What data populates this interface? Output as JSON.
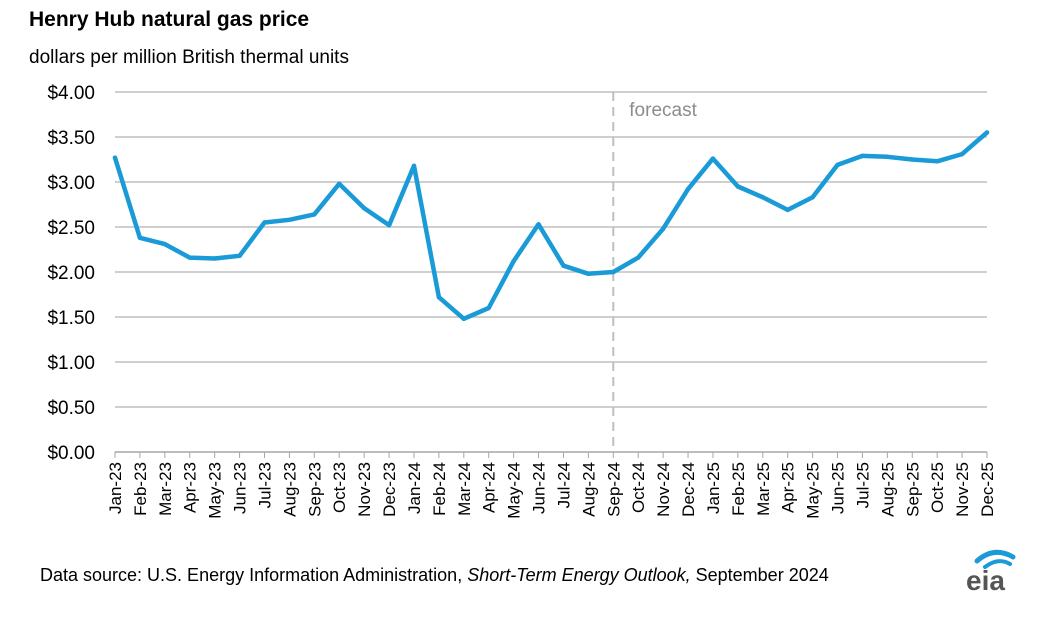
{
  "header": {
    "title": "Henry Hub natural gas price",
    "subtitle": "dollars per million  British thermal units"
  },
  "footer": {
    "source_prefix": "Data source: U.S. Energy Information Administration, ",
    "source_report": "Short-Term Energy Outlook,",
    "source_date": " September 2024"
  },
  "logo": {
    "text": "eia"
  },
  "colors": {
    "line": "#1a9ad6",
    "grid": "#bfbfbf",
    "forecast_line": "#bfbfbf",
    "forecast_text": "#8c8c8c"
  },
  "chart_data": {
    "type": "line",
    "title": "Henry Hub natural gas price",
    "ylabel": "dollars per million  British thermal units",
    "ylim": [
      0,
      4
    ],
    "yticks": [
      "$0.00",
      "$0.50",
      "$1.00",
      "$1.50",
      "$2.00",
      "$2.50",
      "$3.00",
      "$3.50",
      "$4.00"
    ],
    "grid": true,
    "categories": [
      "Jan-23",
      "Feb-23",
      "Mar-23",
      "Apr-23",
      "May-23",
      "Jun-23",
      "Jul-23",
      "Aug-23",
      "Sep-23",
      "Oct-23",
      "Nov-23",
      "Dec-23",
      "Jan-24",
      "Feb-24",
      "Mar-24",
      "Apr-24",
      "May-24",
      "Jun-24",
      "Jul-24",
      "Aug-24",
      "Sep-24",
      "Oct-24",
      "Nov-24",
      "Dec-24",
      "Jan-25",
      "Feb-25",
      "Mar-25",
      "Apr-25",
      "May-25",
      "Jun-25",
      "Jul-25",
      "Aug-25",
      "Sep-25",
      "Oct-25",
      "Nov-25",
      "Dec-25"
    ],
    "series": [
      {
        "values": [
          3.27,
          2.38,
          2.31,
          2.16,
          2.15,
          2.18,
          2.55,
          2.58,
          2.64,
          2.98,
          2.71,
          2.52,
          3.18,
          1.72,
          1.48,
          1.6,
          2.12,
          2.53,
          2.07,
          1.98,
          2.0,
          2.16,
          2.48,
          2.92,
          3.26,
          2.95,
          2.83,
          2.69,
          2.83,
          3.19,
          3.29,
          3.28,
          3.25,
          3.23,
          3.31,
          3.55
        ]
      }
    ],
    "annotations": [
      {
        "text": "forecast",
        "at_category": "Sep-24"
      }
    ]
  }
}
